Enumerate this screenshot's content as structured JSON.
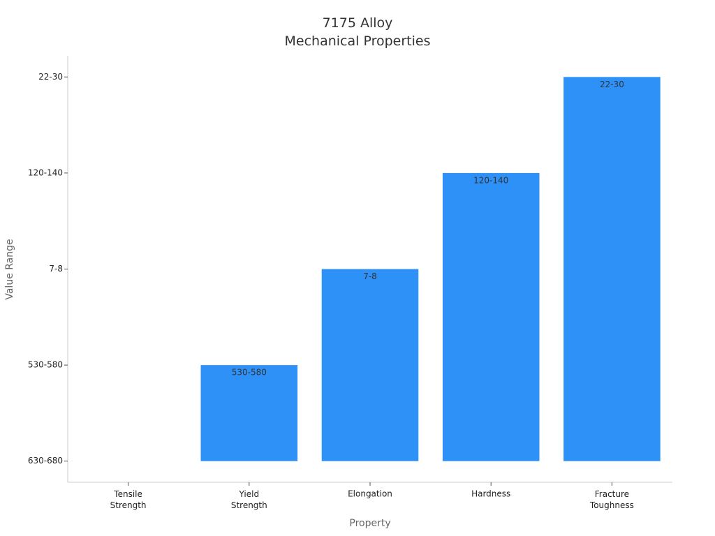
{
  "chart_data": {
    "type": "bar",
    "title": "7175 Alloy\nMechanical Properties",
    "x_label": "Property",
    "y_label": "Value Range",
    "categories": [
      "Tensile\nStrength",
      "Yield\nStrength",
      "Elongation",
      "Hardness",
      "Fracture\nToughness"
    ],
    "values": [
      0,
      1,
      2,
      3,
      4
    ],
    "value_labels": [
      null,
      "530-580",
      "7-8",
      "120-140",
      "22-30"
    ],
    "color": "#2e91f8",
    "ylim": [
      -0.22,
      4.22
    ],
    "yticks": [
      {
        "value": 0,
        "label": "630-680"
      },
      {
        "value": 1,
        "label": "530-580"
      },
      {
        "value": 2,
        "label": "7-8"
      },
      {
        "value": 3,
        "label": "120-140"
      },
      {
        "value": 4,
        "label": "22-30"
      }
    ],
    "grid": false
  }
}
